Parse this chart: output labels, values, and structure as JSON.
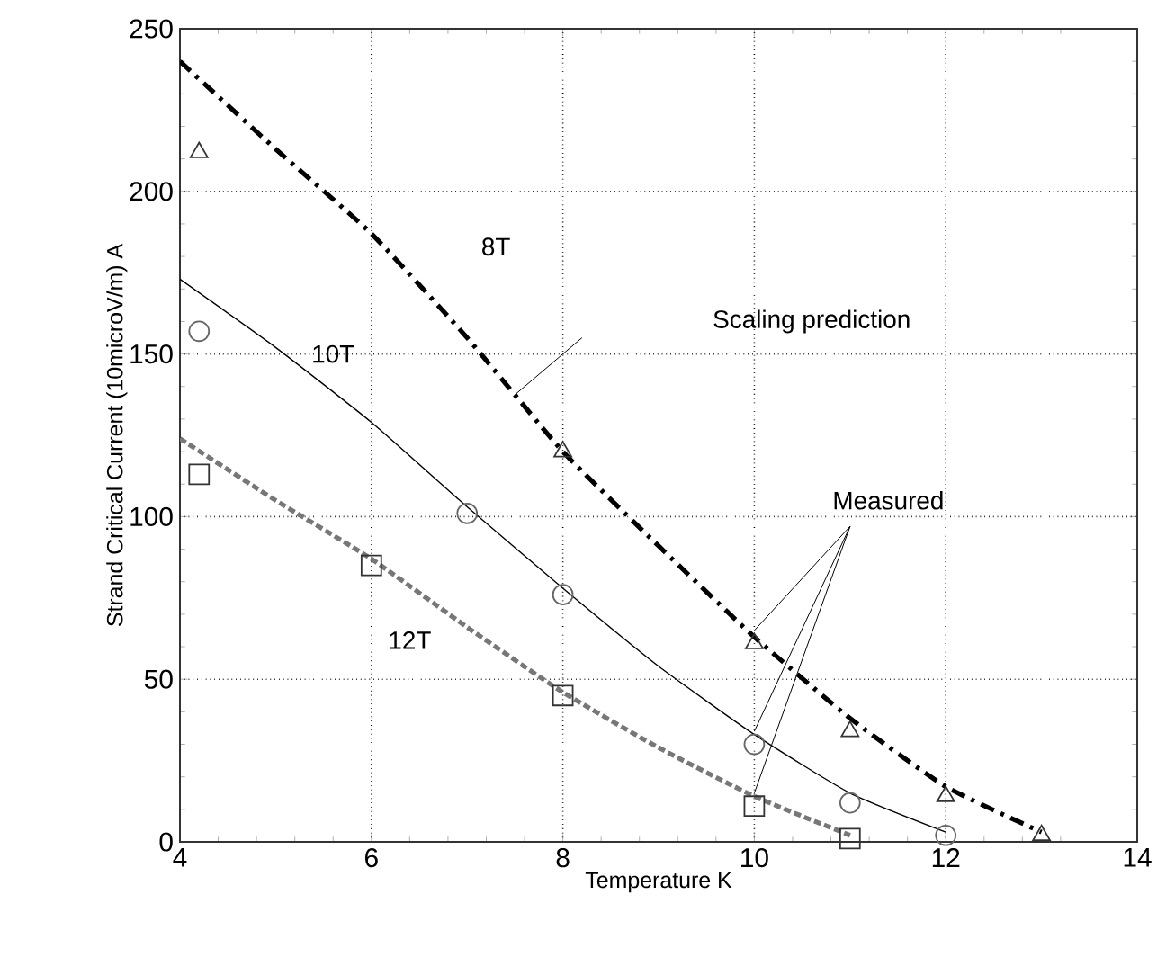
{
  "chart_data": {
    "type": "line",
    "xlabel": "Temperature K",
    "ylabel": "Strand Critical Current (10microV/m) A",
    "xlim": [
      4,
      14
    ],
    "ylim": [
      0,
      250
    ],
    "xticks": [
      4,
      6,
      8,
      10,
      12,
      14
    ],
    "yticks": [
      0,
      50,
      100,
      150,
      200,
      250
    ],
    "grid": true,
    "series": [
      {
        "color": "#000000",
        "line_style": "dashdot",
        "marker": "none",
        "x": [
          4,
          5,
          6,
          7,
          8,
          9,
          10,
          11,
          12,
          13
        ],
        "values": [
          240,
          213,
          187,
          155,
          120,
          91,
          63,
          38,
          17,
          3
        ]
      },
      {
        "color": "#000000",
        "line_style": "solid",
        "marker": "none",
        "x": [
          4,
          5,
          6,
          7,
          8,
          9,
          10,
          11,
          12
        ],
        "values": [
          173,
          152,
          129,
          103,
          78,
          54,
          33,
          15,
          3
        ]
      },
      {
        "color": "#777777",
        "line_style": "dashed",
        "marker": "none",
        "x": [
          4,
          5,
          6,
          7,
          8,
          9,
          10,
          11
        ],
        "values": [
          124,
          105,
          87,
          66,
          46,
          29,
          14,
          2
        ]
      },
      {
        "type": "scatter",
        "color": "#333333",
        "marker": "triangle",
        "x": [
          4.2,
          8,
          10,
          11,
          12,
          13
        ],
        "values": [
          212,
          120,
          61,
          34,
          14,
          2
        ]
      },
      {
        "type": "scatter",
        "color": "#666666",
        "marker": "circle",
        "x": [
          4.2,
          7,
          8,
          10,
          11,
          12
        ],
        "values": [
          157,
          101,
          76,
          30,
          12,
          2
        ]
      },
      {
        "type": "scatter",
        "color": "#333333",
        "marker": "square",
        "x": [
          4.2,
          6,
          8,
          10,
          11
        ],
        "values": [
          113,
          85,
          45,
          11,
          1
        ]
      }
    ],
    "annotations": [
      "8T",
      "10T",
      "12T",
      "Scaling prediction",
      {
        "text": "Measured",
        "x": 10,
        "y": 61
      }
    ]
  }
}
